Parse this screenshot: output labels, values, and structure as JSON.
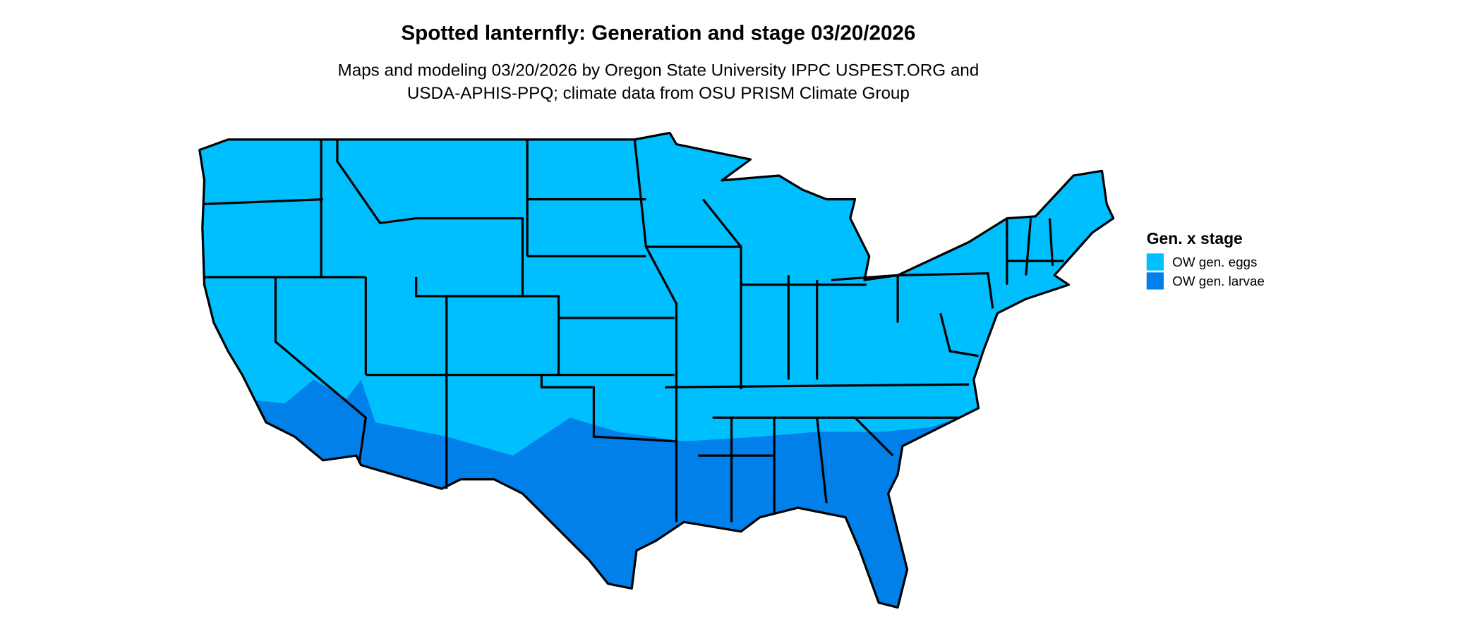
{
  "header": {
    "title": "Spotted lanternfly: Generation and stage 03/20/2026",
    "subtitle_lines": [
      "Maps and modeling 03/20/2026 by Oregon State University IPPC USPEST.ORG and",
      "USDA-APHIS-PPQ; climate data from OSU PRISM Climate Group"
    ]
  },
  "legend": {
    "title": "Gen. x stage",
    "items": [
      {
        "label": "OW gen. eggs",
        "color": "#00bfff"
      },
      {
        "label": "OW gen. larvae",
        "color": "#0080e8"
      }
    ]
  }
}
